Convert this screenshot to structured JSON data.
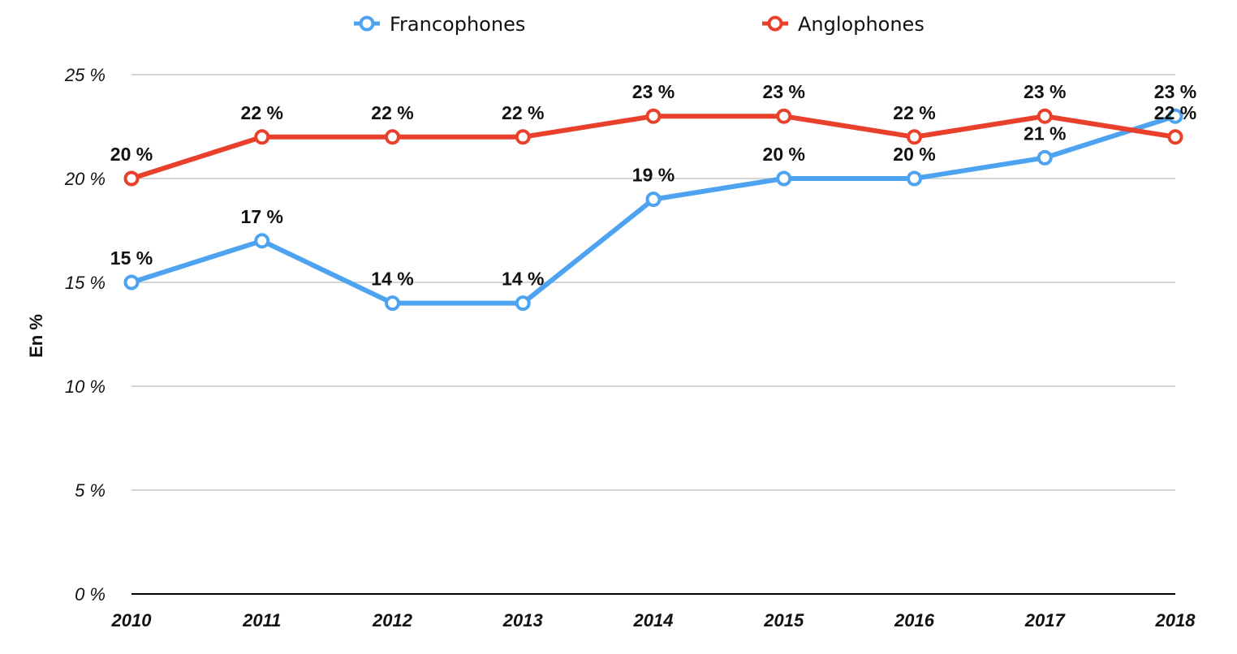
{
  "chart_data": {
    "type": "line",
    "title": "",
    "xlabel": "",
    "ylabel": "En %",
    "categories": [
      "2010",
      "2011",
      "2012",
      "2013",
      "2014",
      "2015",
      "2016",
      "2017",
      "2018"
    ],
    "y_ticks": [
      {
        "value": 0,
        "label": "0 %"
      },
      {
        "value": 5,
        "label": "5 %"
      },
      {
        "value": 10,
        "label": "10 %"
      },
      {
        "value": 15,
        "label": "15 %"
      },
      {
        "value": 20,
        "label": "20 %"
      },
      {
        "value": 25,
        "label": "25 %"
      }
    ],
    "ylim": [
      0,
      25
    ],
    "grid": true,
    "legend_position": "top-center",
    "series": [
      {
        "name": "Francophones",
        "color": "#4DA3EF",
        "values": [
          15,
          17,
          14,
          14,
          19,
          20,
          20,
          21,
          23
        ],
        "labels": [
          "15 %",
          "17 %",
          "14 %",
          "14 %",
          "19 %",
          "20 %",
          "20 %",
          "21 %",
          "23 %"
        ]
      },
      {
        "name": "Anglophones",
        "color": "#E8402B",
        "values": [
          20,
          22,
          22,
          22,
          23,
          23,
          22,
          23,
          22
        ],
        "labels": [
          "20 %",
          "22 %",
          "22 %",
          "22 %",
          "23 %",
          "23 %",
          "22 %",
          "23 %",
          "22 %"
        ]
      }
    ]
  }
}
